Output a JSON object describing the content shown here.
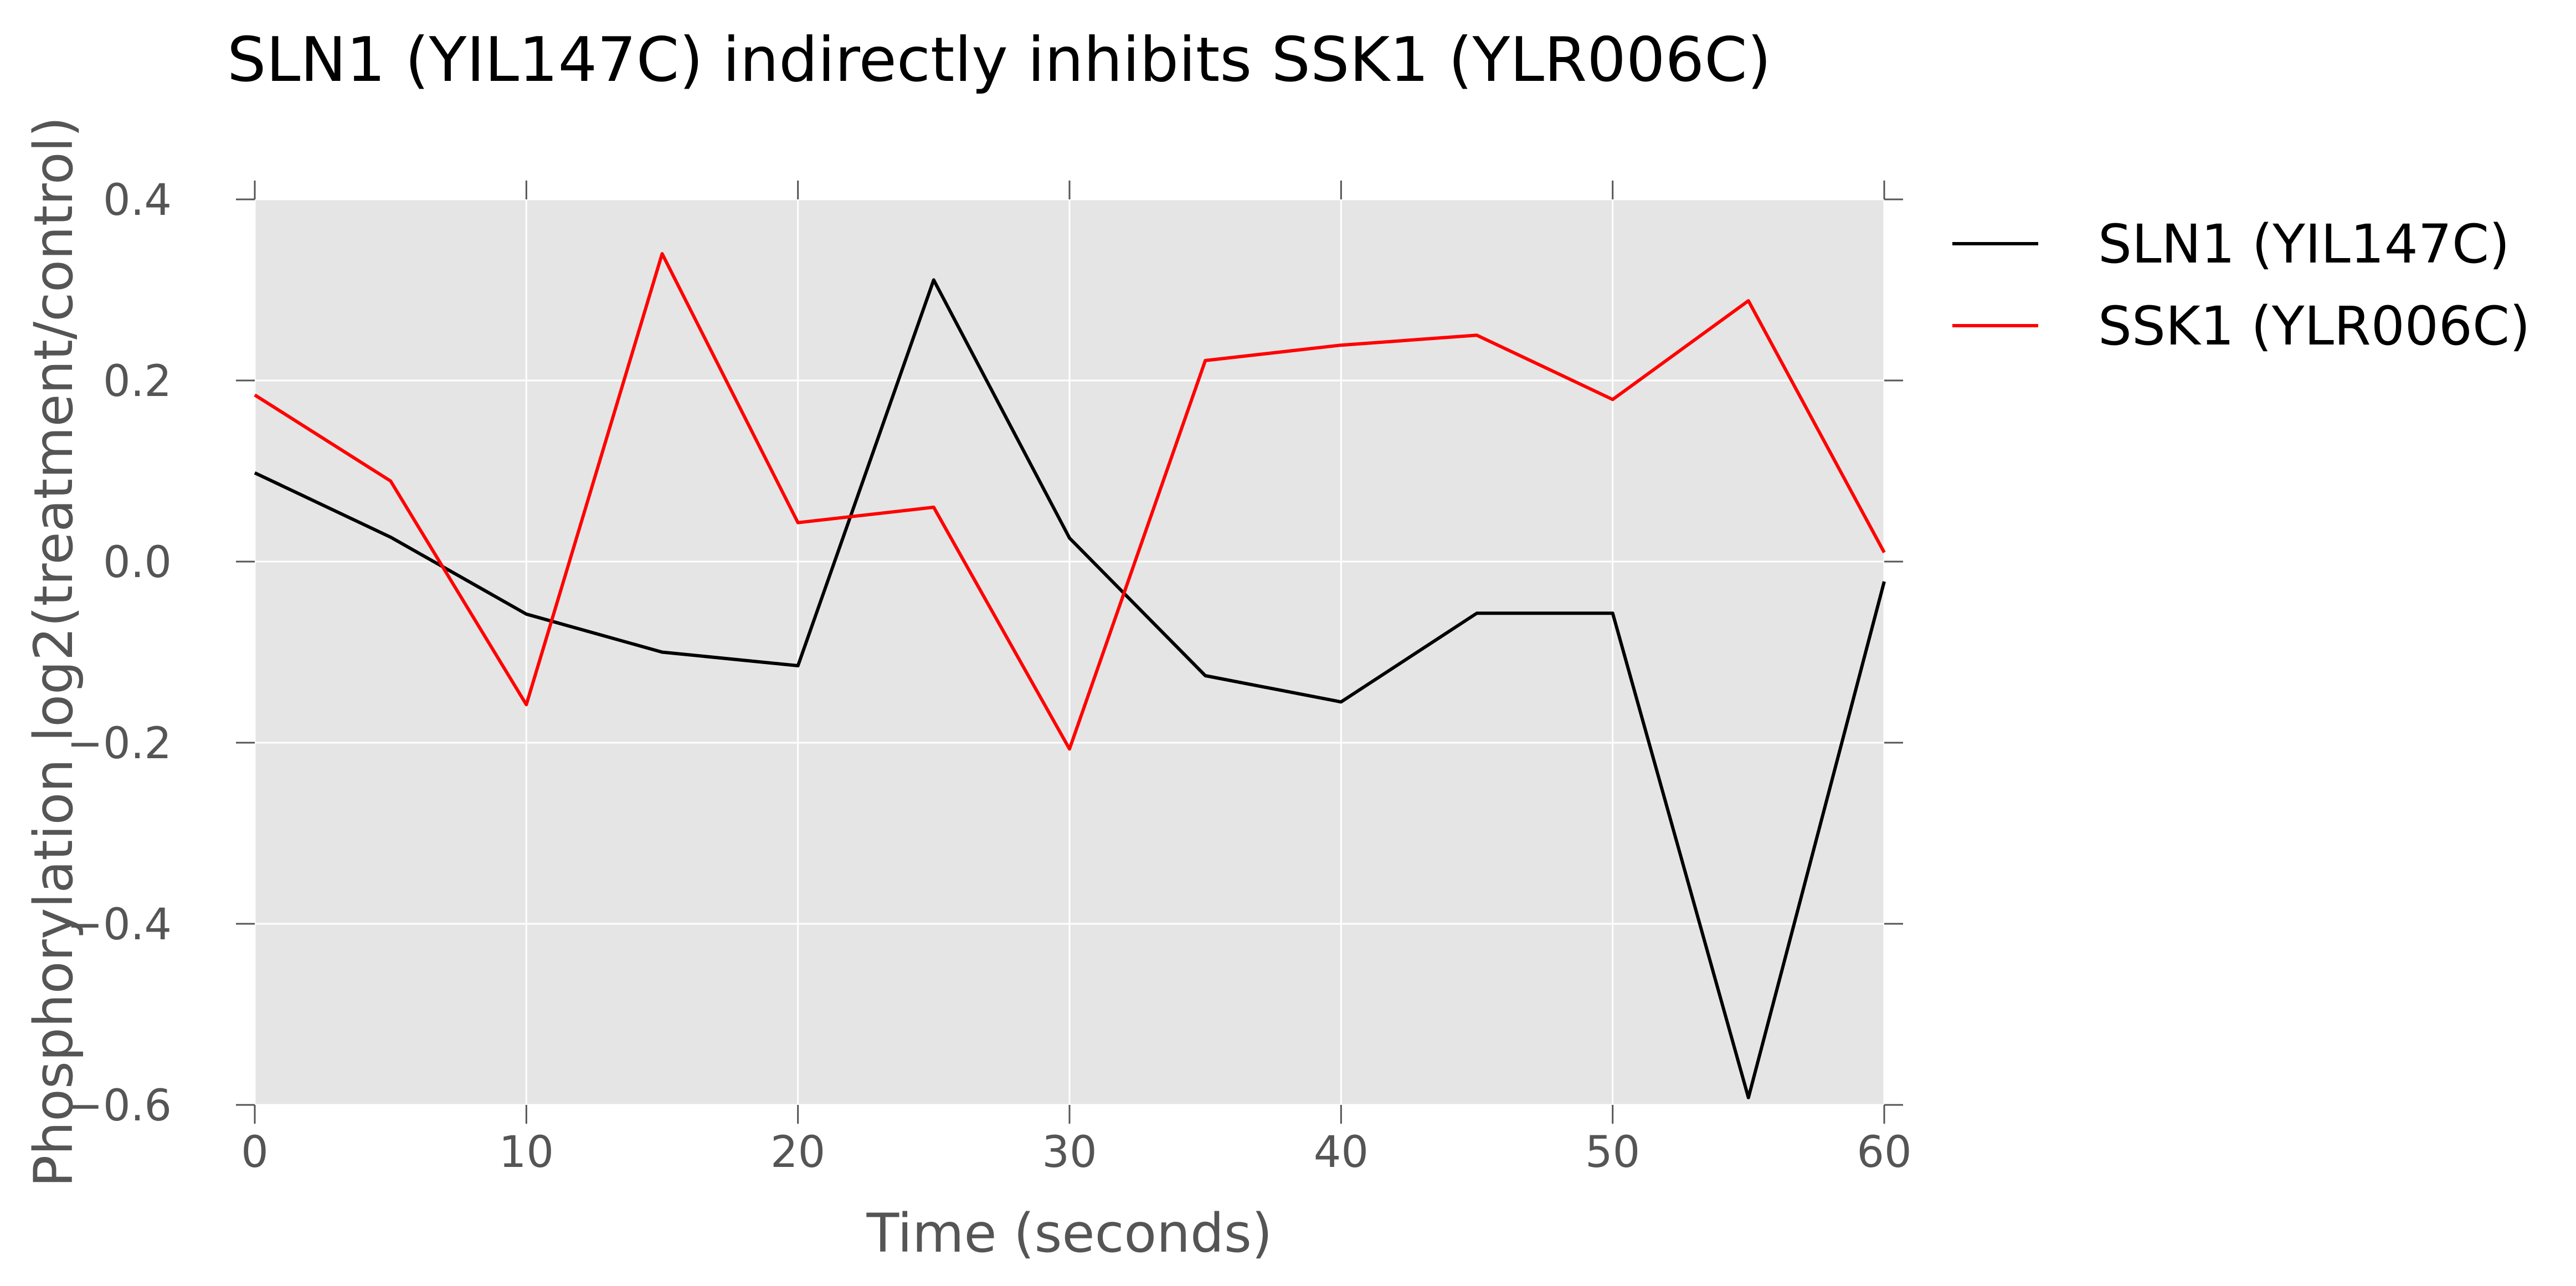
{
  "chart_data": {
    "type": "line",
    "title": "SLN1 (YIL147C) indirectly inhibits SSK1 (YLR006C)",
    "xlabel": "Time (seconds)",
    "ylabel": "Phosphorylation log2(treatment/control)",
    "xlim": [
      0,
      60
    ],
    "ylim": [
      -0.6,
      0.4
    ],
    "xticks": [
      0,
      10,
      20,
      30,
      40,
      50,
      60
    ],
    "xtick_labels": [
      "0",
      "10",
      "20",
      "30",
      "40",
      "50",
      "60"
    ],
    "yticks": [
      0.4,
      0.2,
      0.0,
      -0.2,
      -0.4,
      -0.6
    ],
    "ytick_labels": [
      "0.4",
      "0.2",
      "0.0",
      "−0.2",
      "−0.4",
      "−0.6"
    ],
    "grid": true,
    "legend_position": "outside-right-top",
    "background_color": "#e5e5e5",
    "x": [
      0,
      5,
      10,
      15,
      20,
      25,
      30,
      35,
      40,
      45,
      50,
      55,
      60
    ],
    "series": [
      {
        "name": "SLN1 (YIL147C)",
        "color": "#000000",
        "values": [
          0.098,
          0.027,
          -0.058,
          -0.1,
          -0.115,
          0.311,
          0.026,
          -0.126,
          -0.155,
          -0.057,
          -0.057,
          -0.592,
          -0.022
        ]
      },
      {
        "name": "SSK1 (YLR006C)",
        "color": "#ff0000",
        "values": [
          0.184,
          0.089,
          -0.158,
          0.34,
          0.043,
          0.06,
          -0.207,
          0.222,
          0.239,
          0.25,
          0.179,
          0.288,
          0.01
        ]
      }
    ]
  }
}
